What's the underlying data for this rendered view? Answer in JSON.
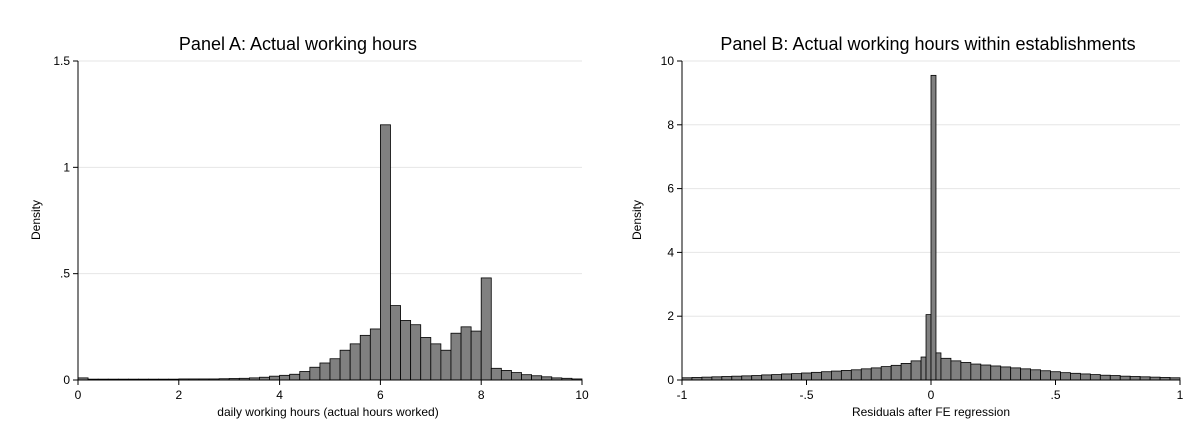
{
  "chart_data": [
    {
      "type": "bar",
      "title": "Panel A: Actual working hours",
      "xlabel": "daily working hours (actual hours worked)",
      "ylabel": "Density",
      "xlim": [
        0,
        10
      ],
      "ylim": [
        0,
        1.5
      ],
      "bin_width": 0.2,
      "xticks": [
        0,
        2,
        4,
        6,
        8,
        10
      ],
      "xtick_labels": [
        "0",
        "2",
        "4",
        "6",
        "8",
        "10"
      ],
      "yticks": [
        0,
        0.5,
        1,
        1.5
      ],
      "ytick_labels": [
        "0",
        ".5",
        "1",
        "1.5"
      ],
      "grid": true,
      "bins": [
        {
          "x": 0.0,
          "density": 0.01
        },
        {
          "x": 0.2,
          "density": 0.004
        },
        {
          "x": 0.4,
          "density": 0.004
        },
        {
          "x": 0.6,
          "density": 0.004
        },
        {
          "x": 0.8,
          "density": 0.004
        },
        {
          "x": 1.0,
          "density": 0.004
        },
        {
          "x": 1.2,
          "density": 0.004
        },
        {
          "x": 1.4,
          "density": 0.004
        },
        {
          "x": 1.6,
          "density": 0.004
        },
        {
          "x": 1.8,
          "density": 0.004
        },
        {
          "x": 2.0,
          "density": 0.005
        },
        {
          "x": 2.2,
          "density": 0.005
        },
        {
          "x": 2.4,
          "density": 0.005
        },
        {
          "x": 2.6,
          "density": 0.005
        },
        {
          "x": 2.8,
          "density": 0.006
        },
        {
          "x": 3.0,
          "density": 0.007
        },
        {
          "x": 3.2,
          "density": 0.008
        },
        {
          "x": 3.4,
          "density": 0.01
        },
        {
          "x": 3.6,
          "density": 0.013
        },
        {
          "x": 3.8,
          "density": 0.018
        },
        {
          "x": 4.0,
          "density": 0.022
        },
        {
          "x": 4.2,
          "density": 0.027
        },
        {
          "x": 4.4,
          "density": 0.04
        },
        {
          "x": 4.6,
          "density": 0.06
        },
        {
          "x": 4.8,
          "density": 0.08
        },
        {
          "x": 5.0,
          "density": 0.1
        },
        {
          "x": 5.2,
          "density": 0.14
        },
        {
          "x": 5.4,
          "density": 0.17
        },
        {
          "x": 5.6,
          "density": 0.21
        },
        {
          "x": 5.8,
          "density": 0.24
        },
        {
          "x": 6.0,
          "density": 1.2
        },
        {
          "x": 6.2,
          "density": 0.35
        },
        {
          "x": 6.4,
          "density": 0.28
        },
        {
          "x": 6.6,
          "density": 0.26
        },
        {
          "x": 6.8,
          "density": 0.2
        },
        {
          "x": 7.0,
          "density": 0.17
        },
        {
          "x": 7.2,
          "density": 0.14
        },
        {
          "x": 7.4,
          "density": 0.22
        },
        {
          "x": 7.6,
          "density": 0.25
        },
        {
          "x": 7.8,
          "density": 0.23
        },
        {
          "x": 8.0,
          "density": 0.48
        },
        {
          "x": 8.2,
          "density": 0.055
        },
        {
          "x": 8.4,
          "density": 0.045
        },
        {
          "x": 8.6,
          "density": 0.035
        },
        {
          "x": 8.8,
          "density": 0.025
        },
        {
          "x": 9.0,
          "density": 0.02
        },
        {
          "x": 9.2,
          "density": 0.015
        },
        {
          "x": 9.4,
          "density": 0.01
        },
        {
          "x": 9.6,
          "density": 0.008
        },
        {
          "x": 9.8,
          "density": 0.005
        }
      ]
    },
    {
      "type": "bar",
      "title": "Panel B: Actual working hours within establishments",
      "xlabel": "Residuals after FE regression",
      "ylabel": "Density",
      "xlim": [
        -1,
        1
      ],
      "ylim": [
        0,
        10
      ],
      "bin_width": 0.04,
      "xticks": [
        -1,
        -0.5,
        0,
        0.5,
        1
      ],
      "xtick_labels": [
        "-1",
        "-.5",
        "0",
        ".5",
        "1"
      ],
      "yticks": [
        0,
        2,
        4,
        6,
        8,
        10
      ],
      "ytick_labels": [
        "0",
        "2",
        "4",
        "6",
        "8",
        "10"
      ],
      "grid": true,
      "bins": [
        {
          "x": -1.0,
          "density": 0.07
        },
        {
          "x": -0.96,
          "density": 0.08
        },
        {
          "x": -0.92,
          "density": 0.09
        },
        {
          "x": -0.88,
          "density": 0.1
        },
        {
          "x": -0.84,
          "density": 0.11
        },
        {
          "x": -0.8,
          "density": 0.12
        },
        {
          "x": -0.76,
          "density": 0.13
        },
        {
          "x": -0.72,
          "density": 0.14
        },
        {
          "x": -0.68,
          "density": 0.16
        },
        {
          "x": -0.64,
          "density": 0.17
        },
        {
          "x": -0.6,
          "density": 0.19
        },
        {
          "x": -0.56,
          "density": 0.2
        },
        {
          "x": -0.52,
          "density": 0.22
        },
        {
          "x": -0.48,
          "density": 0.24
        },
        {
          "x": -0.44,
          "density": 0.26
        },
        {
          "x": -0.4,
          "density": 0.28
        },
        {
          "x": -0.36,
          "density": 0.3
        },
        {
          "x": -0.32,
          "density": 0.32
        },
        {
          "x": -0.28,
          "density": 0.35
        },
        {
          "x": -0.24,
          "density": 0.38
        },
        {
          "x": -0.2,
          "density": 0.42
        },
        {
          "x": -0.16,
          "density": 0.46
        },
        {
          "x": -0.12,
          "density": 0.52
        },
        {
          "x": -0.08,
          "density": 0.6
        },
        {
          "x": -0.04,
          "density": 0.72
        },
        {
          "x": -0.02,
          "density": 2.05
        },
        {
          "x": 0.0,
          "density": 9.55
        },
        {
          "x": 0.02,
          "density": 0.85
        },
        {
          "x": 0.04,
          "density": 0.68
        },
        {
          "x": 0.08,
          "density": 0.6
        },
        {
          "x": 0.12,
          "density": 0.55
        },
        {
          "x": 0.16,
          "density": 0.5
        },
        {
          "x": 0.2,
          "density": 0.47
        },
        {
          "x": 0.24,
          "density": 0.44
        },
        {
          "x": 0.28,
          "density": 0.41
        },
        {
          "x": 0.32,
          "density": 0.38
        },
        {
          "x": 0.36,
          "density": 0.35
        },
        {
          "x": 0.4,
          "density": 0.32
        },
        {
          "x": 0.44,
          "density": 0.29
        },
        {
          "x": 0.48,
          "density": 0.26
        },
        {
          "x": 0.52,
          "density": 0.23
        },
        {
          "x": 0.56,
          "density": 0.21
        },
        {
          "x": 0.6,
          "density": 0.19
        },
        {
          "x": 0.64,
          "density": 0.17
        },
        {
          "x": 0.68,
          "density": 0.15
        },
        {
          "x": 0.72,
          "density": 0.14
        },
        {
          "x": 0.76,
          "density": 0.12
        },
        {
          "x": 0.8,
          "density": 0.11
        },
        {
          "x": 0.84,
          "density": 0.1
        },
        {
          "x": 0.88,
          "density": 0.09
        },
        {
          "x": 0.92,
          "density": 0.08
        },
        {
          "x": 0.96,
          "density": 0.07
        }
      ]
    }
  ]
}
